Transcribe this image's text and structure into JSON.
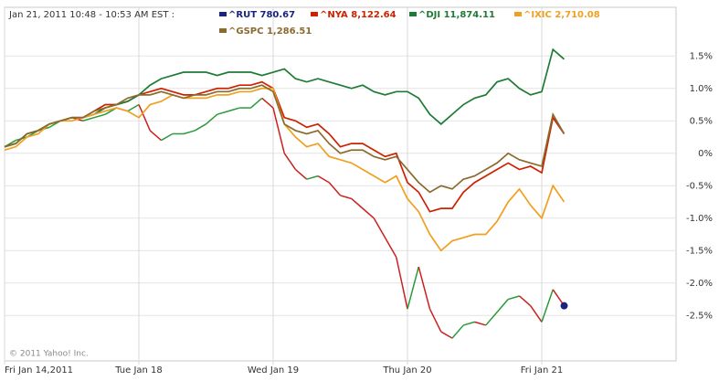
{
  "chart_data": {
    "type": "line",
    "title": "Jan 21, 2011 10:48 - 10:53 AM EST :",
    "copyright": "© 2011 Yahoo! Inc.",
    "categories": [
      "Fri Jan 14,2011",
      null,
      null,
      null,
      null,
      null,
      null,
      null,
      null,
      null,
      null,
      null,
      "Tue Jan 18",
      null,
      null,
      null,
      null,
      null,
      null,
      null,
      null,
      null,
      null,
      null,
      "Wed Jan 19",
      null,
      null,
      null,
      null,
      null,
      null,
      null,
      null,
      null,
      null,
      null,
      "Thu Jan 20",
      null,
      null,
      null,
      null,
      null,
      null,
      null,
      null,
      null,
      null,
      null,
      "Fri Jan 21",
      null,
      null,
      null,
      null,
      null,
      null,
      null,
      null,
      null,
      null,
      null
    ],
    "ylim": [
      -3.2,
      2.25
    ],
    "yticks": [
      {
        "value": -2.5,
        "label": "-2.5%"
      },
      {
        "value": -2.0,
        "label": "-2.0%"
      },
      {
        "value": -1.5,
        "label": "-1.5%"
      },
      {
        "value": -1.0,
        "label": "-1.0%"
      },
      {
        "value": -0.5,
        "label": "-0.5%"
      },
      {
        "value": 0,
        "label": "0%"
      },
      {
        "value": 0.5,
        "label": "0.5%"
      },
      {
        "value": 1.0,
        "label": "1.0%"
      },
      {
        "value": 1.5,
        "label": "1.5%"
      }
    ],
    "grid": true,
    "series": [
      {
        "name": "^RUT 780.67",
        "color": "#1a237e",
        "up_color": "#2a9a3a",
        "down_color": "#cc2020",
        "end_marker": true,
        "values": [
          0.1,
          0.2,
          0.25,
          0.35,
          0.4,
          0.5,
          0.55,
          0.5,
          0.55,
          0.6,
          0.7,
          0.65,
          0.75,
          0.35,
          0.2,
          0.3,
          0.3,
          0.35,
          0.45,
          0.6,
          0.65,
          0.7,
          0.7,
          0.85,
          0.7,
          0.0,
          -0.25,
          -0.4,
          -0.35,
          -0.45,
          -0.65,
          -0.7,
          -0.85,
          -1.0,
          -1.3,
          -1.6,
          -2.4,
          -1.75,
          -2.4,
          -2.75,
          -2.85,
          -2.65,
          -2.6,
          -2.65,
          -2.45,
          -2.25,
          -2.2,
          -2.35,
          -2.6,
          -2.1,
          -2.35,
          null,
          null,
          null,
          null,
          null,
          null,
          null,
          null,
          null
        ]
      },
      {
        "name": "^NYA 8,122.64",
        "color": "#cc2200",
        "values": [
          0.1,
          0.15,
          0.3,
          0.35,
          0.45,
          0.5,
          0.55,
          0.55,
          0.65,
          0.75,
          0.75,
          0.8,
          0.9,
          0.95,
          1.0,
          0.95,
          0.9,
          0.9,
          0.95,
          1.0,
          1.0,
          1.05,
          1.05,
          1.1,
          1.0,
          0.55,
          0.5,
          0.4,
          0.45,
          0.3,
          0.1,
          0.15,
          0.15,
          0.05,
          -0.05,
          0.0,
          -0.45,
          -0.6,
          -0.9,
          -0.85,
          -0.85,
          -0.6,
          -0.45,
          -0.35,
          -0.25,
          -0.15,
          -0.25,
          -0.2,
          -0.3,
          0.55,
          0.3,
          null,
          null,
          null,
          null,
          null,
          null,
          null,
          null,
          null
        ]
      },
      {
        "name": "^DJI 11,874.11",
        "color": "#1e7b34",
        "values": [
          0.1,
          0.15,
          0.3,
          0.35,
          0.45,
          0.5,
          0.55,
          0.55,
          0.6,
          0.7,
          0.75,
          0.8,
          0.9,
          1.05,
          1.15,
          1.2,
          1.25,
          1.25,
          1.25,
          1.2,
          1.25,
          1.25,
          1.25,
          1.2,
          1.25,
          1.3,
          1.15,
          1.1,
          1.15,
          1.1,
          1.05,
          1.0,
          1.05,
          0.95,
          0.9,
          0.95,
          0.95,
          0.85,
          0.6,
          0.45,
          0.6,
          0.75,
          0.85,
          0.9,
          1.1,
          1.15,
          1.0,
          0.9,
          0.95,
          1.6,
          1.45,
          null,
          null,
          null,
          null,
          null,
          null,
          null,
          null,
          null
        ]
      },
      {
        "name": "^IXIC 2,710.08",
        "color": "#f0a020",
        "values": [
          0.05,
          0.1,
          0.25,
          0.3,
          0.45,
          0.5,
          0.5,
          0.55,
          0.6,
          0.65,
          0.7,
          0.65,
          0.55,
          0.75,
          0.8,
          0.9,
          0.85,
          0.85,
          0.85,
          0.9,
          0.9,
          0.95,
          0.95,
          1.0,
          1.0,
          0.45,
          0.25,
          0.1,
          0.15,
          -0.05,
          -0.1,
          -0.15,
          -0.25,
          -0.35,
          -0.45,
          -0.35,
          -0.7,
          -0.9,
          -1.25,
          -1.5,
          -1.35,
          -1.3,
          -1.25,
          -1.25,
          -1.05,
          -0.75,
          -0.55,
          -0.8,
          -1.0,
          -0.5,
          -0.75,
          null,
          null,
          null,
          null,
          null,
          null,
          null,
          null,
          null
        ]
      },
      {
        "name": "^GSPC 1,286.51",
        "color": "#8b6a2e",
        "values": [
          0.1,
          0.15,
          0.3,
          0.35,
          0.45,
          0.5,
          0.55,
          0.55,
          0.65,
          0.7,
          0.75,
          0.85,
          0.9,
          0.9,
          0.95,
          0.9,
          0.85,
          0.9,
          0.9,
          0.95,
          0.95,
          1.0,
          1.0,
          1.05,
          0.95,
          0.45,
          0.35,
          0.3,
          0.35,
          0.15,
          0.0,
          0.05,
          0.05,
          -0.05,
          -0.1,
          -0.05,
          -0.25,
          -0.45,
          -0.6,
          -0.5,
          -0.55,
          -0.4,
          -0.35,
          -0.25,
          -0.15,
          0.0,
          -0.1,
          -0.15,
          -0.2,
          0.6,
          0.3,
          null,
          null,
          null,
          null,
          null,
          null,
          null,
          null,
          null
        ]
      }
    ]
  }
}
